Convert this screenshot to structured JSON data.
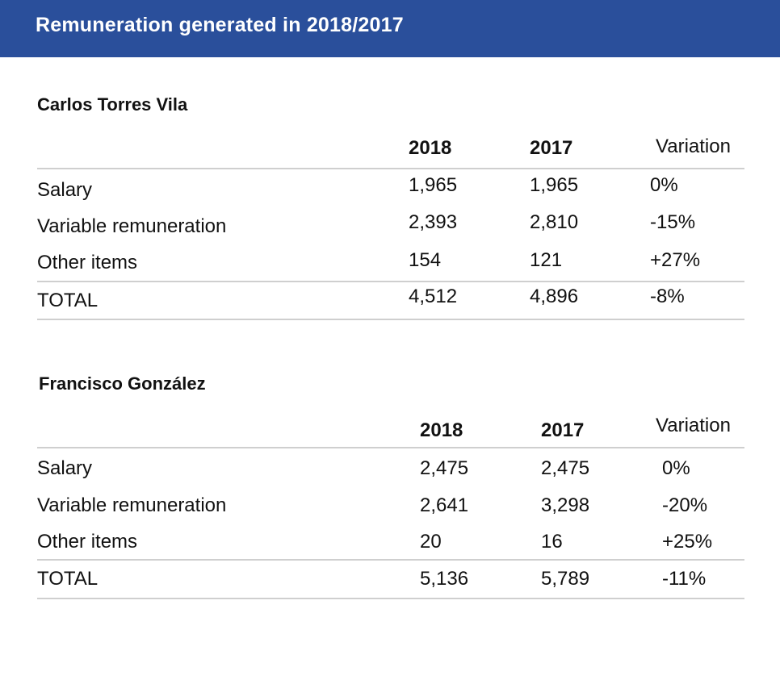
{
  "title": "Remuneration generated in 2018/2017",
  "sections": [
    {
      "name": "Carlos Torres Vila",
      "columns": [
        "2018",
        "2017",
        "Variation"
      ],
      "rows": [
        {
          "label": "Salary",
          "y2018": "1,965",
          "y2017": "1,965",
          "variation": "0%"
        },
        {
          "label": "Variable remuneration",
          "y2018": "2,393",
          "y2017": "2,810",
          "variation": "-15%"
        },
        {
          "label": "Other items",
          "y2018": "154",
          "y2017": "121",
          "variation": "+27%"
        },
        {
          "label": "TOTAL",
          "y2018": "4,512",
          "y2017": "4,896",
          "variation": "-8%"
        }
      ]
    },
    {
      "name": "Francisco González",
      "columns": [
        "2018",
        "2017",
        "Variation"
      ],
      "rows": [
        {
          "label": "Salary",
          "y2018": "2,475",
          "y2017": "2,475",
          "variation": "0%"
        },
        {
          "label": "Variable remuneration",
          "y2018": "2,641",
          "y2017": "3,298",
          "variation": "-20%"
        },
        {
          "label": "Other items",
          "y2018": "20",
          "y2017": "16",
          "variation": "+25%"
        },
        {
          "label": "TOTAL",
          "y2018": "5,136",
          "y2017": "5,789",
          "variation": "-11%"
        }
      ]
    }
  ]
}
